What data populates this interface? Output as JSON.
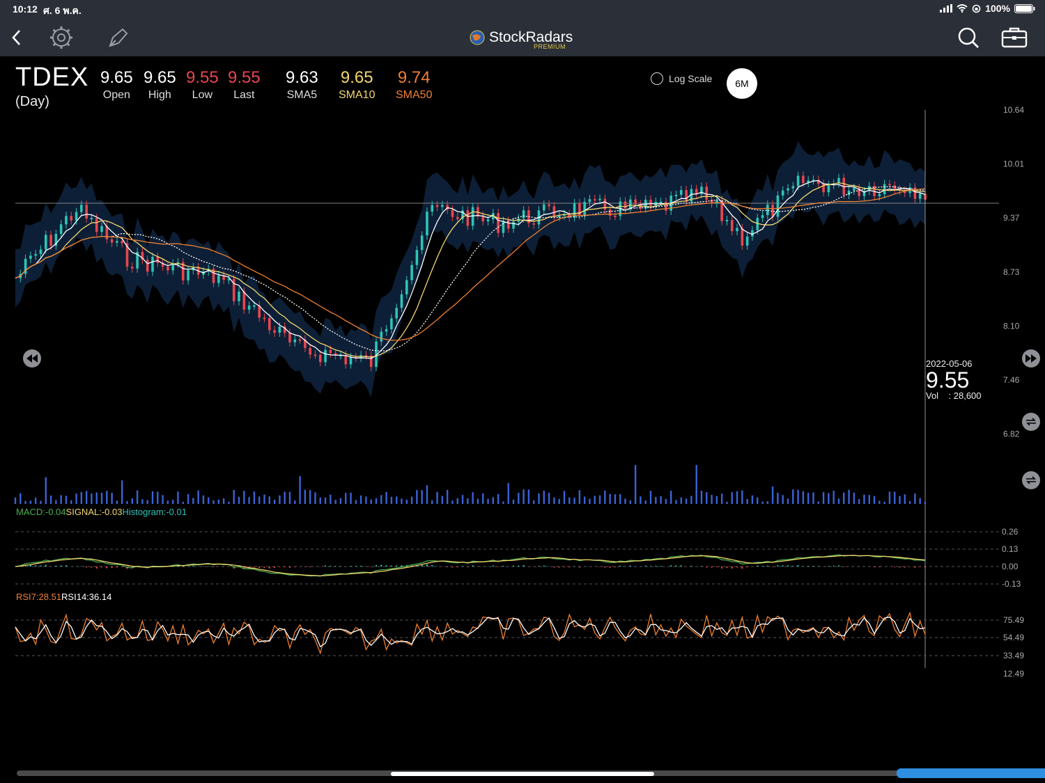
{
  "status": {
    "time": "10:12",
    "date": "ศ. 6 พ.ค.",
    "battery": "100%"
  },
  "app": {
    "name": "StockRadars",
    "tier": "PREMIUM"
  },
  "nav": {
    "back_icon": "chevron-left-icon",
    "settings_icon": "gear-icon",
    "draw_icon": "pen-icon",
    "search_icon": "search-icon",
    "portfolio_icon": "briefcase-icon"
  },
  "quote": {
    "symbol": "TDEX",
    "period": "(Day)",
    "open": {
      "value": "9.65",
      "label": "Open",
      "color": "#ffffff"
    },
    "high": {
      "value": "9.65",
      "label": "High",
      "color": "#ffffff"
    },
    "low": {
      "value": "9.55",
      "label": "Low",
      "color": "#e8464e"
    },
    "last": {
      "value": "9.55",
      "label": "Last",
      "color": "#e8464e"
    },
    "sma5": {
      "value": "9.63",
      "label": "SMA5",
      "color": "#ffffff"
    },
    "sma10": {
      "value": "9.65",
      "label": "SMA10",
      "color": "#f5d76e"
    },
    "sma50": {
      "value": "9.74",
      "label": "SMA50",
      "color": "#f08030"
    }
  },
  "controls": {
    "log_scale": "Log Scale",
    "range": "6M"
  },
  "price_axis": [
    "10.64",
    "10.01",
    "9.37",
    "8.73",
    "8.10",
    "7.46",
    "6.82"
  ],
  "cursor": {
    "date": "2022-05-06",
    "price": "9.55",
    "vol_label": "Vol",
    "vol_value": ": 28,600"
  },
  "macd": {
    "macd": "MACD:-0.04",
    "signal": "SIGNAL:-0.03",
    "histogram": "Histogram:-0.01",
    "axis": [
      "0.26",
      "0.13",
      "0.00",
      "-0.13"
    ]
  },
  "rsi": {
    "rsi7": "RSI7:28.51",
    "rsi14": "RSI14:36.14",
    "axis": [
      "75.49",
      "54.49",
      "33.49",
      "12.49"
    ]
  },
  "colors": {
    "candle_up": "#2ec4b6",
    "candle_down": "#e8464e",
    "volume": "#3b63d6",
    "band": "#0d1f36",
    "macd_line": "#4caf50",
    "signal_line": "#f5d76e",
    "rsi7": "#f08030",
    "rsi14": "#ffffff"
  }
}
